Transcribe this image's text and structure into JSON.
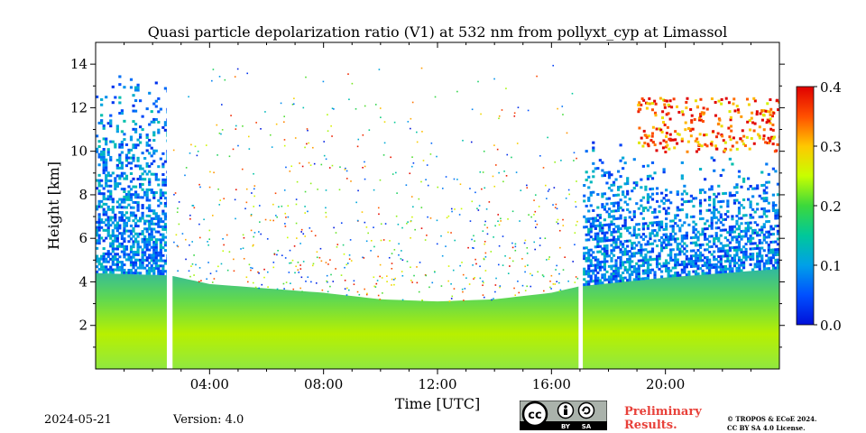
{
  "chart_data": {
    "type": "heatmap",
    "title": "Quasi particle depolarization ratio (V1) at 532 nm from pollyxt_cyp at Limassol",
    "xlabel": "Time [UTC]",
    "ylabel": "Height [km]",
    "xlim": [
      0,
      24
    ],
    "ylim": [
      0,
      15
    ],
    "x_ticks": [
      {
        "value": 4,
        "label": "04:00"
      },
      {
        "value": 8,
        "label": "08:00"
      },
      {
        "value": 12,
        "label": "12:00"
      },
      {
        "value": 16,
        "label": "16:00"
      },
      {
        "value": 20,
        "label": "20:00"
      }
    ],
    "y_ticks": [
      {
        "value": 2,
        "label": "2"
      },
      {
        "value": 4,
        "label": "4"
      },
      {
        "value": 6,
        "label": "6"
      },
      {
        "value": 8,
        "label": "8"
      },
      {
        "value": 10,
        "label": "10"
      },
      {
        "value": 12,
        "label": "12"
      },
      {
        "value": 14,
        "label": "14"
      }
    ],
    "colorbar": {
      "min": 0.0,
      "max": 0.4,
      "ticks": [
        {
          "value": 0.0,
          "label": "0.0"
        },
        {
          "value": 0.1,
          "label": "0.1"
        },
        {
          "value": 0.2,
          "label": "0.2"
        },
        {
          "value": 0.3,
          "label": "0.3"
        },
        {
          "value": 0.4,
          "label": "0.4"
        }
      ],
      "colormap": "jet"
    },
    "data_gaps_hours": [
      [
        2.5,
        2.7
      ],
      [
        16.95,
        17.1
      ]
    ],
    "features": {
      "boundary_layer_top_km": {
        "x": [
          0,
          2.6,
          4,
          8,
          10,
          12,
          14,
          16,
          17,
          20,
          24
        ],
        "y": [
          4.4,
          4.3,
          3.9,
          3.5,
          3.2,
          3.1,
          3.2,
          3.5,
          3.8,
          4.2,
          4.6
        ]
      },
      "cirrus_layer": {
        "x_range": [
          19,
          24
        ],
        "height_km": [
          10,
          12.5
        ],
        "depol_approx": 0.35
      },
      "background_depol_approx": 0.18
    }
  },
  "footer": {
    "date": "2024-05-21",
    "version": "Version: 4.0",
    "preliminary_line1": "Preliminary",
    "preliminary_line2": "Results.",
    "copyright_line1": "© TROPOS & ECoE 2024.",
    "copyright_line2": "CC BY SA 4.0 License.",
    "license_badge": {
      "cc": "cc",
      "by": "BY",
      "sa": "SA"
    }
  }
}
